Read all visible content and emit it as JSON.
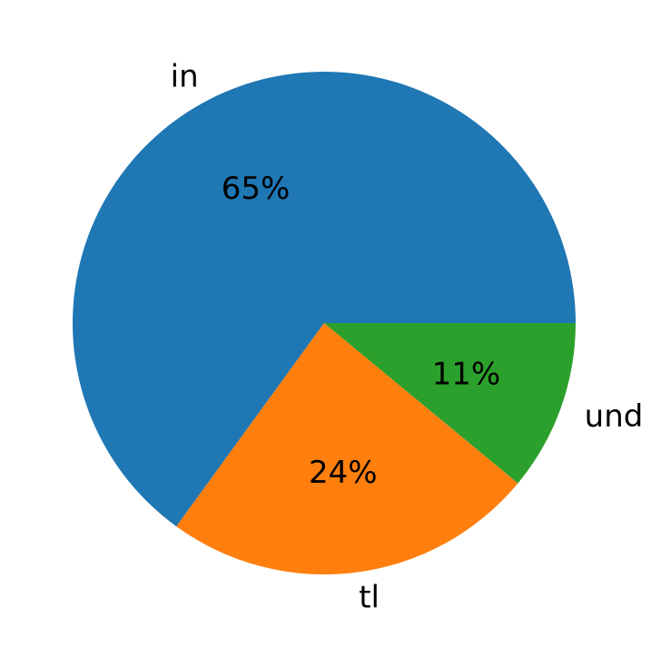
{
  "chart_data": {
    "type": "pie",
    "slices": [
      {
        "label": "in",
        "value": 65,
        "percent_label": "65%",
        "color": "#1f77b4"
      },
      {
        "label": "tl",
        "value": 24,
        "percent_label": "24%",
        "color": "#ff7f0e"
      },
      {
        "label": "und",
        "value": 11,
        "percent_label": "11%",
        "color": "#2ca02c"
      }
    ],
    "start_angle_deg": 0,
    "direction": "counterclockwise"
  }
}
